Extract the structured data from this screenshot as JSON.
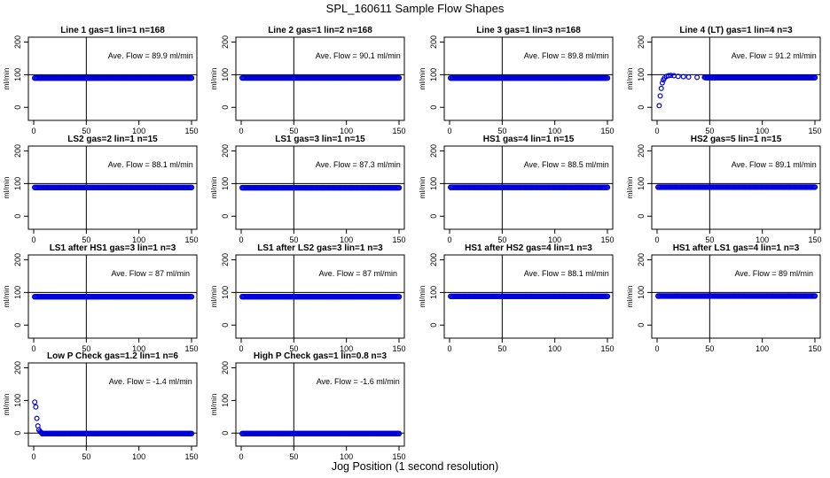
{
  "title": "SPL_160611  Sample Flow Shapes",
  "xlabel": "Jog Position (1 second resolution)",
  "chart_data": [
    {
      "type": "scatter",
      "title": "Line 1 gas=1 lin=1 n=168",
      "ylabel": "ml/min",
      "annotation": "Ave. Flow =  89.9  ml/min",
      "xlim": [
        0,
        150
      ],
      "ylim": [
        -40,
        215
      ],
      "xticks": [
        0,
        50,
        100,
        150
      ],
      "yticks": [
        0,
        100,
        200
      ],
      "xticklabels": [
        "0",
        "50",
        "100",
        "150"
      ],
      "yticklabels": [
        "0",
        "100",
        "200"
      ],
      "vline": 50,
      "hline": 100,
      "flow": 89.9,
      "n_points": 150,
      "startup": []
    },
    {
      "type": "scatter",
      "title": "Line 2 gas=1 lin=2 n=168",
      "ylabel": "ml/min",
      "annotation": "Ave. Flow =  90.1  ml/min",
      "xlim": [
        0,
        150
      ],
      "ylim": [
        -40,
        215
      ],
      "xticks": [
        0,
        50,
        100,
        150
      ],
      "yticks": [
        0,
        100,
        200
      ],
      "xticklabels": [
        "0",
        "50",
        "100",
        "150"
      ],
      "yticklabels": [
        "0",
        "100",
        "200"
      ],
      "vline": 50,
      "hline": 100,
      "flow": 90.1,
      "n_points": 150,
      "startup": []
    },
    {
      "type": "scatter",
      "title": "Line 3 gas=1 lin=3 n=168",
      "ylabel": "ml/min",
      "annotation": "Ave. Flow =  89.8  ml/min",
      "xlim": [
        0,
        150
      ],
      "ylim": [
        -40,
        215
      ],
      "xticks": [
        0,
        50,
        100,
        150
      ],
      "yticks": [
        0,
        100,
        200
      ],
      "xticklabels": [
        "0",
        "50",
        "100",
        "150"
      ],
      "yticklabels": [
        "0",
        "100",
        "200"
      ],
      "vline": 50,
      "hline": 100,
      "flow": 89.8,
      "n_points": 150,
      "startup": []
    },
    {
      "type": "scatter",
      "title": "Line 4 (LT) gas=1 lin=4 n=3",
      "ylabel": "ml/min",
      "annotation": "Ave. Flow =  91.2  ml/min",
      "xlim": [
        0,
        150
      ],
      "ylim": [
        -40,
        215
      ],
      "xticks": [
        0,
        50,
        100,
        150
      ],
      "yticks": [
        0,
        100,
        200
      ],
      "xticklabels": [
        "0",
        "50",
        "100",
        "150"
      ],
      "yticklabels": [
        "0",
        "100",
        "200"
      ],
      "vline": 50,
      "hline": 100,
      "flow": 91.2,
      "n_points": 150,
      "startup": [
        [
          2,
          5
        ],
        [
          3,
          35
        ],
        [
          4,
          58
        ],
        [
          5,
          75
        ],
        [
          6,
          84
        ],
        [
          7,
          90
        ],
        [
          9,
          95
        ],
        [
          11,
          97
        ],
        [
          13,
          98
        ],
        [
          16,
          97
        ],
        [
          20,
          95
        ],
        [
          25,
          94
        ],
        [
          30,
          93
        ],
        [
          38,
          92
        ],
        [
          45,
          92
        ]
      ]
    },
    {
      "type": "scatter",
      "title": "LS2 gas=2 lin=1 n=15",
      "ylabel": "ml/min",
      "annotation": "Ave. Flow =  88.1  ml/min",
      "xlim": [
        0,
        150
      ],
      "ylim": [
        -40,
        215
      ],
      "xticks": [
        0,
        50,
        100,
        150
      ],
      "yticks": [
        0,
        100,
        200
      ],
      "xticklabels": [
        "0",
        "50",
        "100",
        "150"
      ],
      "yticklabels": [
        "0",
        "100",
        "200"
      ],
      "vline": 50,
      "hline": 100,
      "flow": 88.1,
      "n_points": 150,
      "startup": []
    },
    {
      "type": "scatter",
      "title": "LS1 gas=3 lin=1 n=15",
      "ylabel": "ml/min",
      "annotation": "Ave. Flow =  87.3  ml/min",
      "xlim": [
        0,
        150
      ],
      "ylim": [
        -40,
        215
      ],
      "xticks": [
        0,
        50,
        100,
        150
      ],
      "yticks": [
        0,
        100,
        200
      ],
      "xticklabels": [
        "0",
        "50",
        "100",
        "150"
      ],
      "yticklabels": [
        "0",
        "100",
        "200"
      ],
      "vline": 50,
      "hline": 100,
      "flow": 87.3,
      "n_points": 150,
      "startup": []
    },
    {
      "type": "scatter",
      "title": "HS1 gas=4 lin=1 n=15",
      "ylabel": "ml/min",
      "annotation": "Ave. Flow =  88.5  ml/min",
      "xlim": [
        0,
        150
      ],
      "ylim": [
        -40,
        215
      ],
      "xticks": [
        0,
        50,
        100,
        150
      ],
      "yticks": [
        0,
        100,
        200
      ],
      "xticklabels": [
        "0",
        "50",
        "100",
        "150"
      ],
      "yticklabels": [
        "0",
        "100",
        "200"
      ],
      "vline": 50,
      "hline": 100,
      "flow": 88.5,
      "n_points": 150,
      "startup": []
    },
    {
      "type": "scatter",
      "title": "HS2 gas=5 lin=1 n=15",
      "ylabel": "ml/min",
      "annotation": "Ave. Flow =  89.1  ml/min",
      "xlim": [
        0,
        150
      ],
      "ylim": [
        -40,
        215
      ],
      "xticks": [
        0,
        50,
        100,
        150
      ],
      "yticks": [
        0,
        100,
        200
      ],
      "xticklabels": [
        "0",
        "50",
        "100",
        "150"
      ],
      "yticklabels": [
        "0",
        "100",
        "200"
      ],
      "vline": 50,
      "hline": 100,
      "flow": 89.1,
      "n_points": 150,
      "startup": []
    },
    {
      "type": "scatter",
      "title": "LS1 after HS1 gas=3 lin=1 n=3",
      "ylabel": "ml/min",
      "annotation": "Ave. Flow =  87  ml/min",
      "xlim": [
        0,
        150
      ],
      "ylim": [
        -40,
        215
      ],
      "xticks": [
        0,
        50,
        100,
        150
      ],
      "yticks": [
        0,
        100,
        200
      ],
      "xticklabels": [
        "0",
        "50",
        "100",
        "150"
      ],
      "yticklabels": [
        "0",
        "100",
        "200"
      ],
      "vline": 50,
      "hline": 100,
      "flow": 87,
      "n_points": 150,
      "startup": []
    },
    {
      "type": "scatter",
      "title": "LS1 after LS2 gas=3 lin=1 n=3",
      "ylabel": "ml/min",
      "annotation": "Ave. Flow =  87  ml/min",
      "xlim": [
        0,
        150
      ],
      "ylim": [
        -40,
        215
      ],
      "xticks": [
        0,
        50,
        100,
        150
      ],
      "yticks": [
        0,
        100,
        200
      ],
      "xticklabels": [
        "0",
        "50",
        "100",
        "150"
      ],
      "yticklabels": [
        "0",
        "100",
        "200"
      ],
      "vline": 50,
      "hline": 100,
      "flow": 87,
      "n_points": 150,
      "startup": []
    },
    {
      "type": "scatter",
      "title": "HS1 after HS2 gas=4 lin=1 n=3",
      "ylabel": "ml/min",
      "annotation": "Ave. Flow =  88.1  ml/min",
      "xlim": [
        0,
        150
      ],
      "ylim": [
        -40,
        215
      ],
      "xticks": [
        0,
        50,
        100,
        150
      ],
      "yticks": [
        0,
        100,
        200
      ],
      "xticklabels": [
        "0",
        "50",
        "100",
        "150"
      ],
      "yticklabels": [
        "0",
        "100",
        "200"
      ],
      "vline": 50,
      "hline": 100,
      "flow": 88.1,
      "n_points": 150,
      "startup": []
    },
    {
      "type": "scatter",
      "title": "HS1 after LS1 gas=4 lin=1 n=3",
      "ylabel": "ml/min",
      "annotation": "Ave. Flow =  89  ml/min",
      "xlim": [
        0,
        150
      ],
      "ylim": [
        -40,
        215
      ],
      "xticks": [
        0,
        50,
        100,
        150
      ],
      "yticks": [
        0,
        100,
        200
      ],
      "xticklabels": [
        "0",
        "50",
        "100",
        "150"
      ],
      "yticklabels": [
        "0",
        "100",
        "200"
      ],
      "vline": 50,
      "hline": 100,
      "flow": 89,
      "n_points": 150,
      "startup": []
    },
    {
      "type": "scatter",
      "title": "Low P Check gas=1.2 lin=1 n=6",
      "ylabel": "ml/min",
      "annotation": "Ave. Flow =  -1.4  ml/min",
      "xlim": [
        0,
        150
      ],
      "ylim": [
        -40,
        215
      ],
      "xticks": [
        0,
        50,
        100,
        150
      ],
      "yticks": [
        0,
        100,
        200
      ],
      "xticklabels": [
        "0",
        "50",
        "100",
        "150"
      ],
      "yticklabels": [
        "0",
        "100",
        "200"
      ],
      "vline": 50,
      "hline": 0,
      "flow": -1.4,
      "n_points": 150,
      "startup": [
        [
          1,
          95
        ],
        [
          2,
          80
        ],
        [
          3,
          45
        ],
        [
          4,
          22
        ],
        [
          5,
          10
        ],
        [
          6,
          5
        ],
        [
          7,
          2
        ]
      ]
    },
    {
      "type": "scatter",
      "title": "High P Check gas=1 lin=0.8 n=3",
      "ylabel": "ml/min",
      "annotation": "Ave. Flow =  -1.6  ml/min",
      "xlim": [
        0,
        150
      ],
      "ylim": [
        -40,
        215
      ],
      "xticks": [
        0,
        50,
        100,
        150
      ],
      "yticks": [
        0,
        100,
        200
      ],
      "xticklabels": [
        "0",
        "50",
        "100",
        "150"
      ],
      "yticklabels": [
        "0",
        "100",
        "200"
      ],
      "vline": 50,
      "hline": 0,
      "flow": -1.6,
      "n_points": 150,
      "startup": []
    }
  ]
}
